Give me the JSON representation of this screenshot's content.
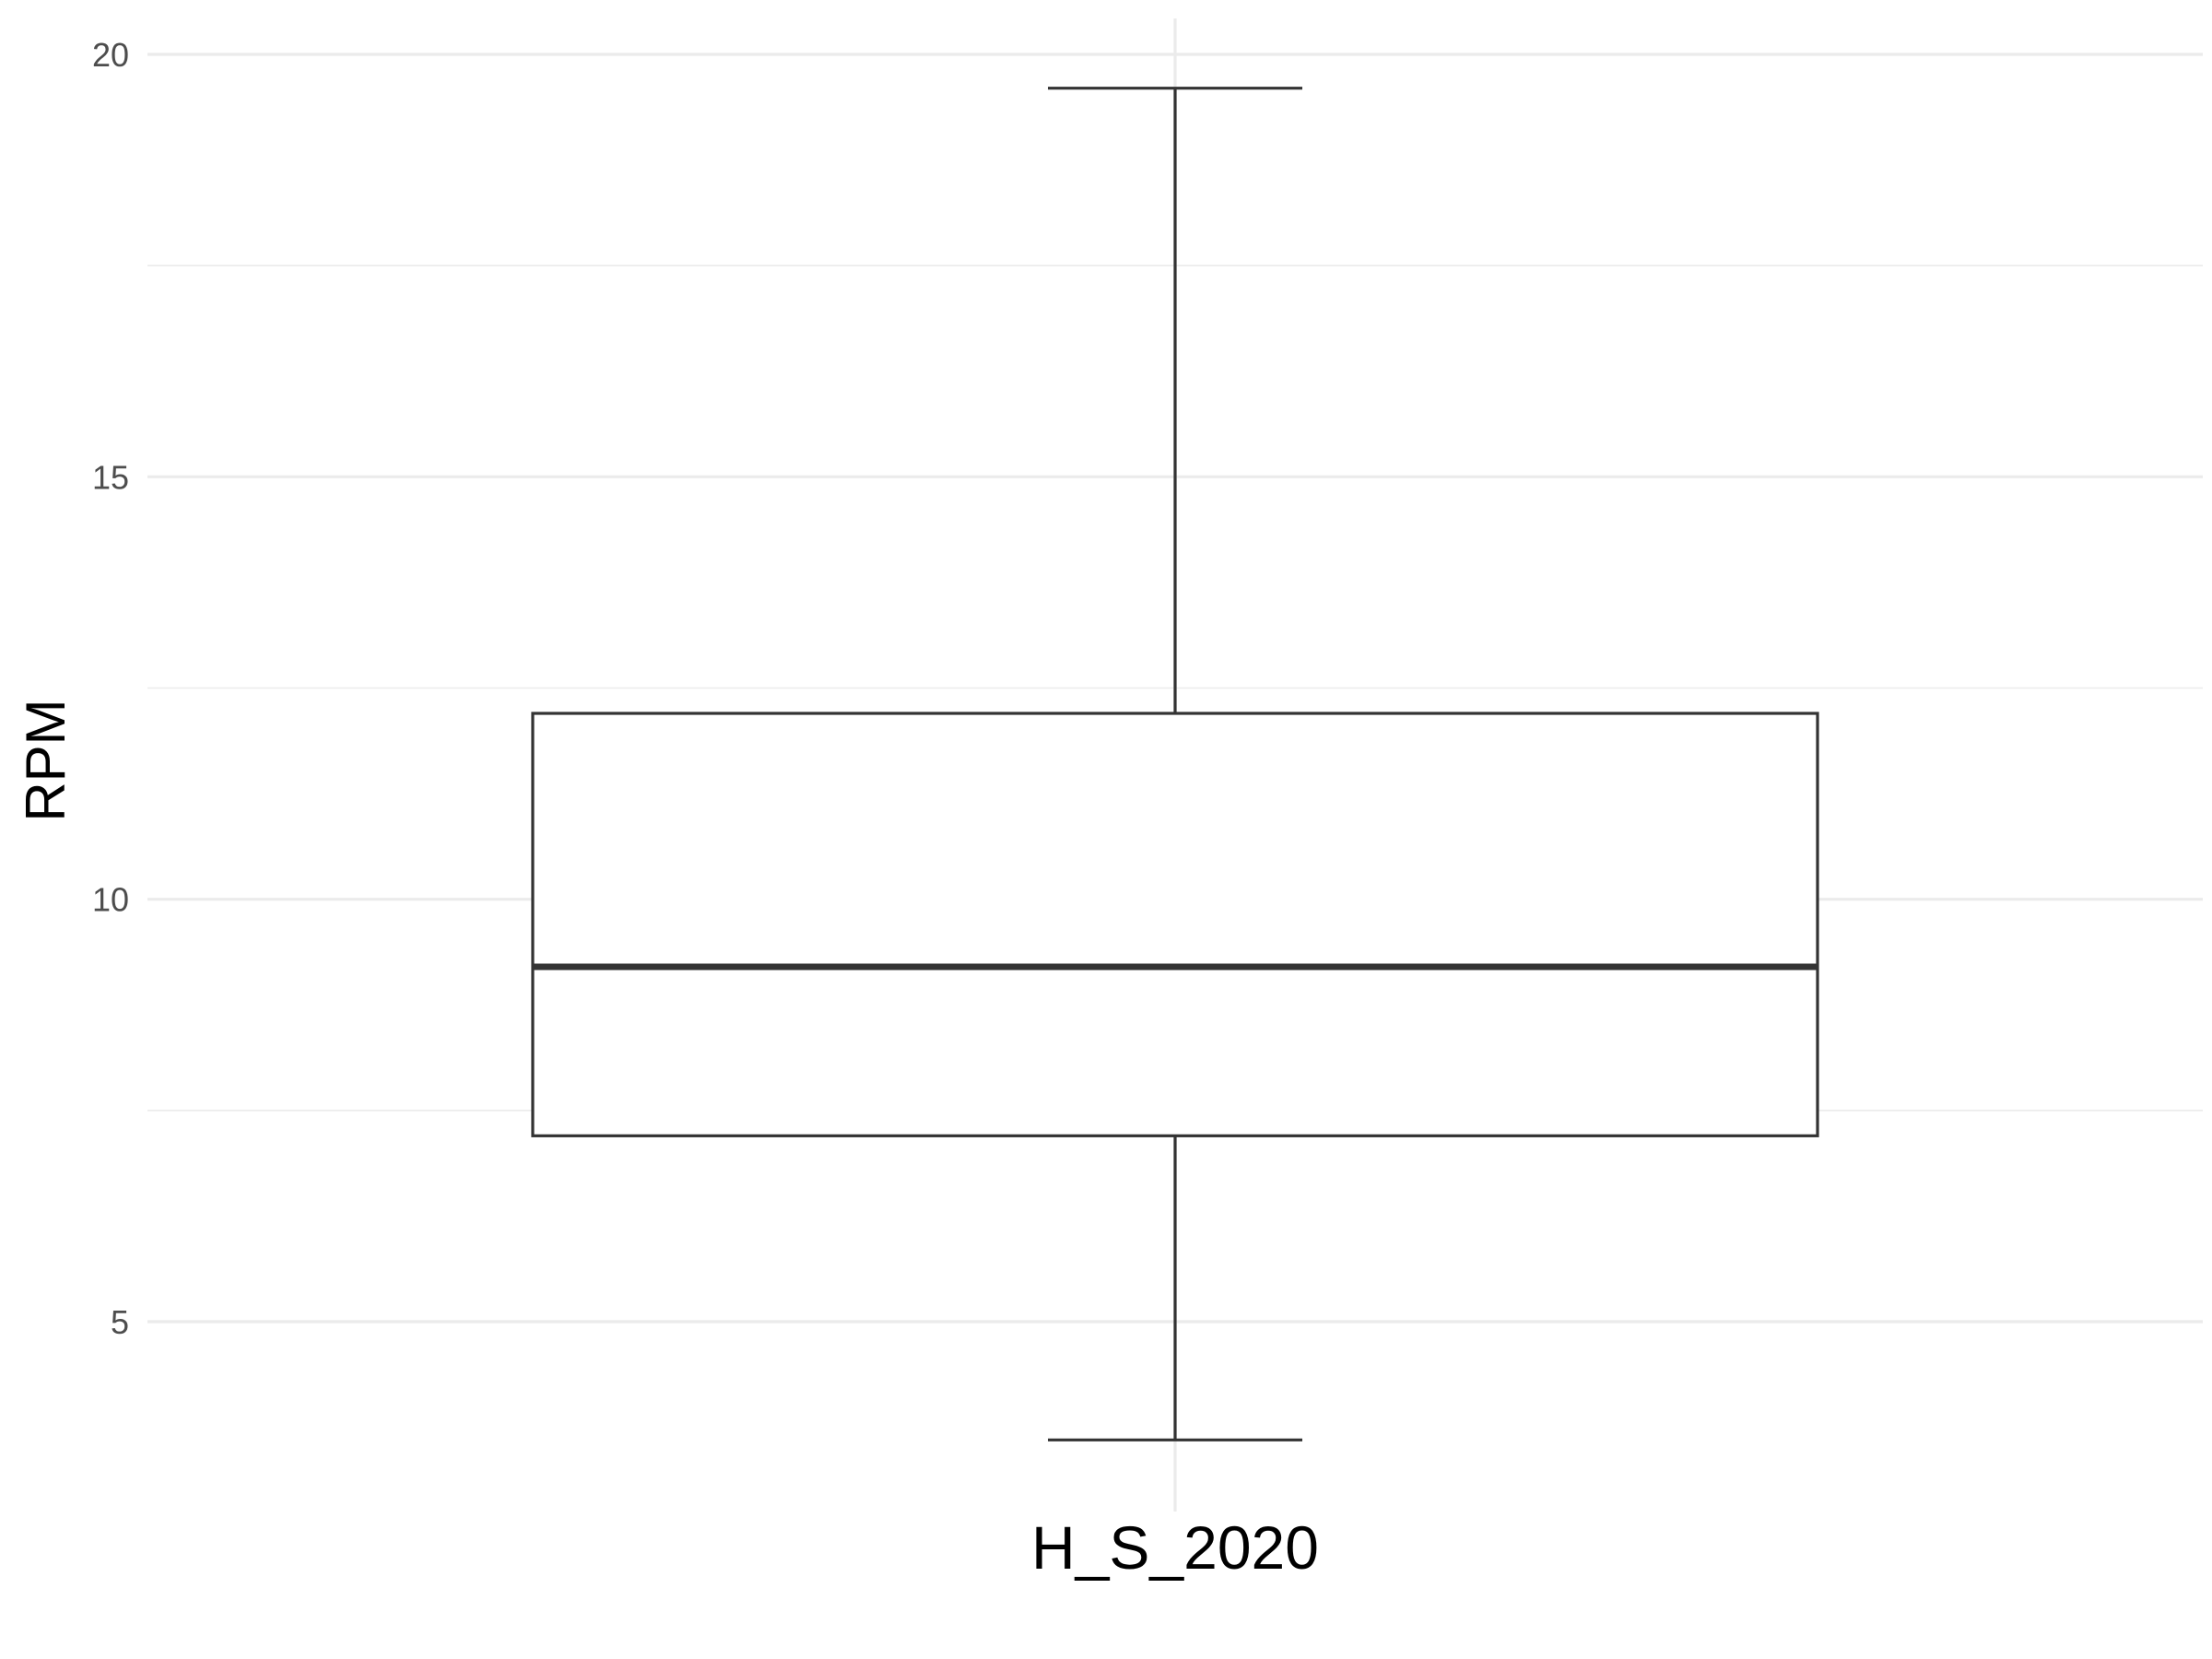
{
  "chart_data": {
    "type": "boxplot",
    "title": "",
    "xlabel": "",
    "ylabel": "RPM",
    "ylim": [
      2.2,
      20.4
    ],
    "y_ticks": [
      5,
      10,
      15,
      20
    ],
    "y_minor_ticks": [
      7.5,
      12.5,
      17.5
    ],
    "grid": true,
    "categories": [
      "H_S_2020"
    ],
    "boxes": [
      {
        "category": "H_S_2020",
        "whisker_low": 3.6,
        "q1": 7.2,
        "median": 9.2,
        "q3": 12.2,
        "whisker_high": 19.6
      }
    ]
  }
}
